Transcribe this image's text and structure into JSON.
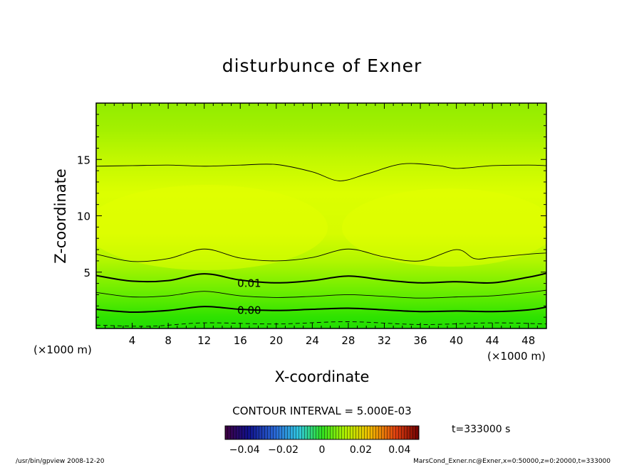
{
  "chart_data": {
    "type": "contour",
    "title": "disturbunce of Exner",
    "xlabel": "X-coordinate",
    "ylabel": "Z-coordinate",
    "x_unit": "(×1000 m)",
    "y_unit": "(×1000 m)",
    "xlim": [
      0,
      50
    ],
    "ylim": [
      0,
      20
    ],
    "xticks": [
      4,
      8,
      12,
      16,
      20,
      24,
      28,
      32,
      36,
      40,
      44,
      48
    ],
    "yticks": [
      5,
      10,
      15
    ],
    "contour_interval_label": "CONTOUR INTERVAL = 5.000E-03",
    "contour_labels": [
      {
        "text": "0.01",
        "x": 17,
        "z": 4.0
      },
      {
        "text": "0.00",
        "x": 17,
        "z": 1.6
      }
    ],
    "contour_lines": [
      {
        "level": "-0.005",
        "style": "dashed",
        "weight": "thin",
        "points": [
          [
            0,
            0.3
          ],
          [
            6,
            0.2
          ],
          [
            12,
            0.5
          ],
          [
            20,
            0.4
          ],
          [
            28,
            0.6
          ],
          [
            36,
            0.35
          ],
          [
            44,
            0.5
          ],
          [
            50,
            0.4
          ]
        ]
      },
      {
        "level": "0.00",
        "style": "solid",
        "weight": "thick",
        "points": [
          [
            0,
            1.7
          ],
          [
            4,
            1.45
          ],
          [
            8,
            1.6
          ],
          [
            12,
            1.95
          ],
          [
            16,
            1.7
          ],
          [
            20,
            1.6
          ],
          [
            24,
            1.7
          ],
          [
            28,
            1.8
          ],
          [
            32,
            1.65
          ],
          [
            36,
            1.5
          ],
          [
            40,
            1.55
          ],
          [
            44,
            1.5
          ],
          [
            48,
            1.65
          ],
          [
            50,
            1.9
          ]
        ]
      },
      {
        "level": "0.005",
        "style": "solid",
        "weight": "thin",
        "points": [
          [
            0,
            3.2
          ],
          [
            4,
            2.8
          ],
          [
            8,
            2.9
          ],
          [
            12,
            3.3
          ],
          [
            16,
            2.9
          ],
          [
            20,
            2.75
          ],
          [
            24,
            2.85
          ],
          [
            28,
            3.0
          ],
          [
            32,
            2.85
          ],
          [
            36,
            2.7
          ],
          [
            40,
            2.8
          ],
          [
            44,
            2.9
          ],
          [
            48,
            3.2
          ],
          [
            50,
            3.4
          ]
        ]
      },
      {
        "level": "0.01",
        "style": "solid",
        "weight": "thick",
        "points": [
          [
            0,
            4.7
          ],
          [
            4,
            4.2
          ],
          [
            8,
            4.25
          ],
          [
            12,
            4.85
          ],
          [
            16,
            4.3
          ],
          [
            20,
            4.05
          ],
          [
            24,
            4.25
          ],
          [
            28,
            4.65
          ],
          [
            32,
            4.3
          ],
          [
            36,
            4.05
          ],
          [
            40,
            4.15
          ],
          [
            44,
            4.05
          ],
          [
            48,
            4.55
          ],
          [
            50,
            4.9
          ]
        ]
      },
      {
        "level": "0.015",
        "style": "solid",
        "weight": "thin",
        "points": [
          [
            0,
            6.6
          ],
          [
            4,
            5.95
          ],
          [
            8,
            6.2
          ],
          [
            12,
            7.05
          ],
          [
            16,
            6.25
          ],
          [
            20,
            6.0
          ],
          [
            24,
            6.3
          ],
          [
            28,
            7.05
          ],
          [
            32,
            6.35
          ],
          [
            36,
            6.0
          ],
          [
            40,
            7.0
          ],
          [
            42,
            6.2
          ],
          [
            44,
            6.3
          ],
          [
            48,
            6.6
          ],
          [
            50,
            6.7
          ]
        ]
      },
      {
        "level": "0.015",
        "style": "solid",
        "weight": "thin",
        "points": [
          [
            0,
            14.4
          ],
          [
            4,
            14.45
          ],
          [
            8,
            14.5
          ],
          [
            12,
            14.4
          ],
          [
            16,
            14.5
          ],
          [
            20,
            14.55
          ],
          [
            24,
            13.9
          ],
          [
            27,
            13.1
          ],
          [
            30,
            13.7
          ],
          [
            34,
            14.6
          ],
          [
            38,
            14.45
          ],
          [
            40,
            14.2
          ],
          [
            44,
            14.45
          ],
          [
            48,
            14.5
          ],
          [
            50,
            14.45
          ]
        ]
      }
    ],
    "colorbar": {
      "ticks": [
        "−0.04",
        "−0.02",
        "0",
        "0.02",
        "0.04"
      ],
      "range": [
        -0.05,
        0.05
      ]
    },
    "time_label": "t=333000 s"
  },
  "footer": {
    "left": "/usr/bin/gpview   2008-12-20",
    "right": "MarsCond_Exner.nc@Exner,x=0:50000,z=0:20000,t=333000"
  }
}
